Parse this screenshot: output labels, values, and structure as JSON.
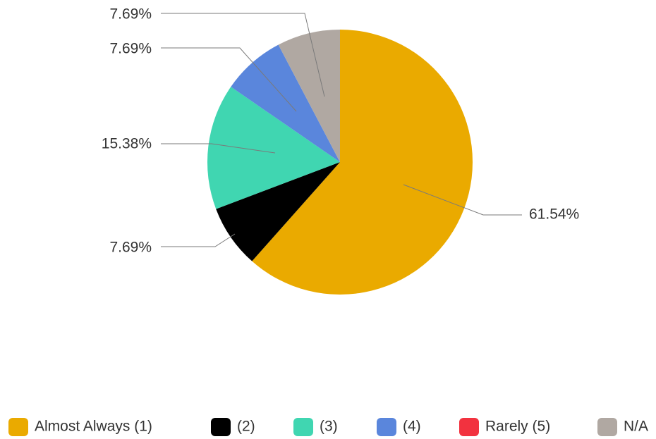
{
  "chart_data": {
    "type": "pie",
    "categories": [
      "Almost Always (1)",
      "(2)",
      "(3)",
      "(4)",
      "Rarely (5)",
      "N/A"
    ],
    "values": [
      61.54,
      7.69,
      15.38,
      7.69,
      0,
      7.69
    ],
    "labels": [
      "61.54%",
      "7.69%",
      "15.38%",
      "7.69%",
      "",
      "7.69%"
    ],
    "colors": [
      "#EAAA00",
      "#000000",
      "#40D6B1",
      "#5A86DC",
      "#F2323F",
      "#B0A8A2"
    ],
    "legend_position": "bottom",
    "start_angle": "top, clockwise"
  }
}
